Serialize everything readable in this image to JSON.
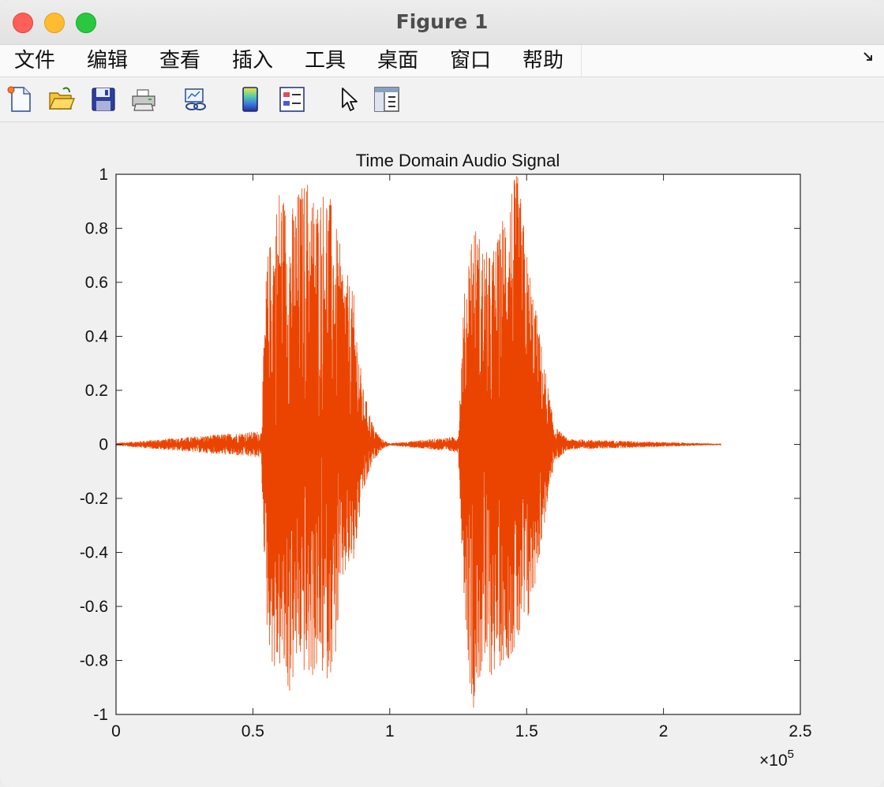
{
  "window": {
    "title": "Figure 1"
  },
  "menubar": {
    "items": [
      "文件",
      "编辑",
      "查看",
      "插入",
      "工具",
      "桌面",
      "窗口",
      "帮助"
    ]
  },
  "toolbar": {
    "tools": [
      "new-figure-icon",
      "open-file-icon",
      "save-icon",
      "print-icon",
      "link-plot-icon",
      "colorbar-icon",
      "legend-icon",
      "pointer-icon",
      "property-inspector-icon"
    ]
  },
  "colors": {
    "signal": "#ea4400",
    "axes": "#262626",
    "plot_bg": "#ffffff"
  },
  "chart_data": {
    "type": "line",
    "title": "Time Domain Audio Signal",
    "xlabel": "",
    "ylabel": "",
    "xlim": [
      0,
      250000
    ],
    "ylim": [
      -1,
      1
    ],
    "x_ticks": [
      "0",
      "0.5",
      "1",
      "1.5",
      "2",
      "2.5"
    ],
    "x_tick_values": [
      0,
      50000,
      100000,
      150000,
      200000,
      250000
    ],
    "y_ticks": [
      "1",
      "0.8",
      "0.6",
      "0.4",
      "0.2",
      "0",
      "-0.2",
      "-0.4",
      "-0.6",
      "-0.8",
      "-1"
    ],
    "y_tick_values": [
      1,
      0.8,
      0.6,
      0.4,
      0.2,
      0,
      -0.2,
      -0.4,
      -0.6,
      -0.8,
      -1
    ],
    "x_exponent_prefix": "×10",
    "x_exponent": "5",
    "grid": false,
    "series": [
      {
        "x": [
          0,
          53000,
          55000,
          58000,
          60000,
          63000,
          67000,
          70000,
          73000,
          77000,
          80000,
          83000,
          87000,
          90000,
          94000,
          97000,
          100000,
          125000,
          127000,
          130000,
          133000,
          136000,
          140000,
          143000,
          147000,
          150000,
          155000,
          160000,
          165000,
          221000
        ],
        "y_max": [
          0.005,
          0.05,
          0.68,
          0.86,
          1.0,
          0.85,
          0.96,
          1.0,
          0.92,
          0.98,
          0.83,
          0.68,
          0.55,
          0.22,
          0.07,
          0.02,
          0.004,
          0.03,
          0.53,
          0.85,
          0.78,
          0.7,
          0.78,
          0.98,
          1.0,
          0.73,
          0.4,
          0.07,
          0.02,
          0.002
        ],
        "y_min": [
          -0.005,
          -0.05,
          -0.69,
          -0.88,
          -0.84,
          -0.95,
          -0.82,
          -0.89,
          -0.86,
          -0.88,
          -0.81,
          -0.51,
          -0.45,
          -0.2,
          -0.06,
          -0.02,
          -0.004,
          -0.03,
          -0.55,
          -1.0,
          -0.88,
          -0.88,
          -0.83,
          -0.8,
          -0.77,
          -0.72,
          -0.4,
          -0.07,
          -0.02,
          -0.002
        ]
      }
    ]
  }
}
